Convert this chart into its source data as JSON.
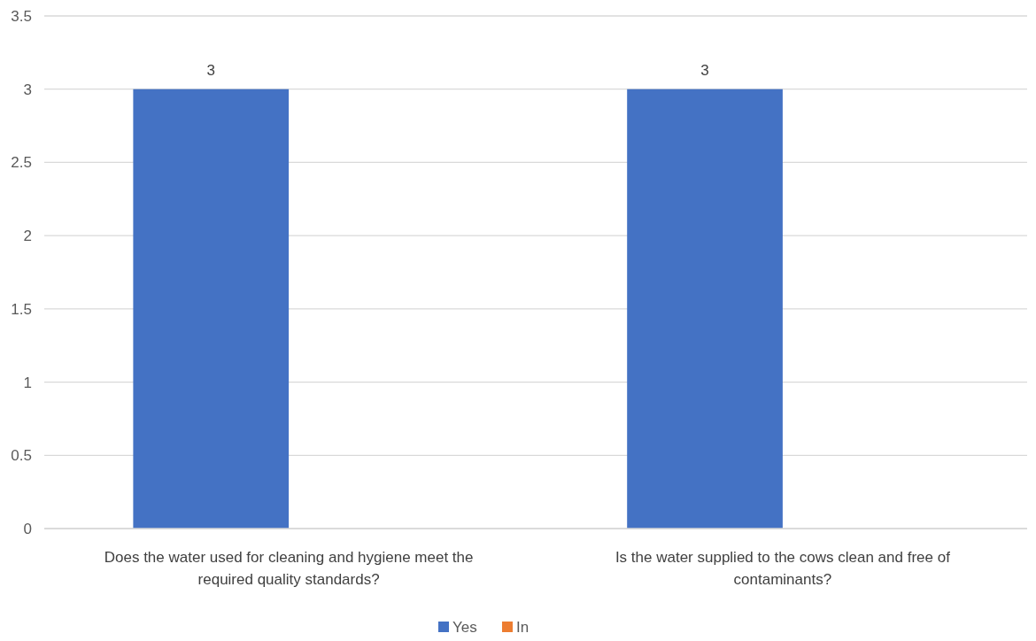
{
  "chart_data": {
    "type": "bar",
    "categories": [
      "Does the water used for cleaning and hygiene meet the required quality standards?",
      "Is the water supplied to the cows clean and free of contaminants?"
    ],
    "series": [
      {
        "name": "Yes",
        "color": "#4472c4",
        "values": [
          3,
          3
        ],
        "value_labels": [
          "3",
          "3"
        ]
      },
      {
        "name": "In",
        "color": "#ed7d31",
        "values": [
          null,
          null
        ]
      }
    ],
    "ylim": [
      0,
      3.5
    ],
    "yticks": [
      0,
      0.5,
      1,
      1.5,
      2,
      2.5,
      3,
      3.5
    ],
    "grid": "y",
    "legend": "bottom"
  }
}
